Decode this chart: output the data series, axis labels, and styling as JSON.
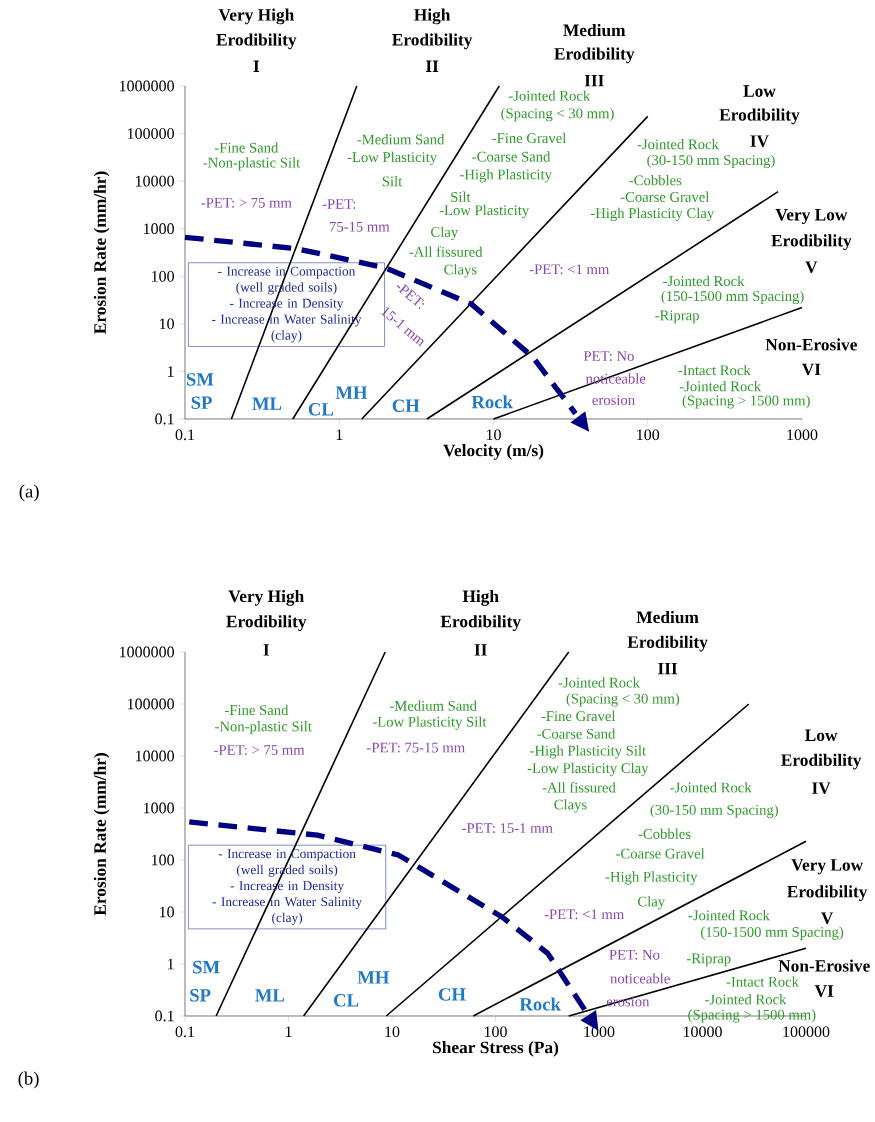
{
  "chart_data": [
    {
      "type": "line",
      "title": "(a)",
      "xlabel": "Velocity (m/s)",
      "ylabel": "Erosion Rate (mm/hr)",
      "log": "xy",
      "xlim": [
        0.1,
        1000
      ],
      "ylim": [
        0.1,
        1000000
      ],
      "xticks": [
        0.1,
        1,
        10,
        100,
        1000
      ],
      "yticks": [
        0.1,
        1,
        10,
        100,
        1000,
        10000,
        100000,
        1000000
      ],
      "series": [
        {
          "color": "#000000",
          "x": [
            0.2,
            1.3
          ],
          "values": [
            0.1,
            1000000
          ]
        },
        {
          "color": "#000000",
          "x": [
            0.5,
            10.9
          ],
          "values": [
            0.1,
            1000000
          ]
        },
        {
          "color": "#000000",
          "x": [
            1.4,
            100
          ],
          "values": [
            0.1,
            230000
          ]
        },
        {
          "color": "#000000",
          "x": [
            3.7,
            700
          ],
          "values": [
            0.1,
            6000
          ]
        },
        {
          "color": "#000000",
          "x": [
            10,
            1000
          ],
          "values": [
            0.1,
            22
          ]
        },
        {
          "color": "#000080",
          "line_style": "dashed",
          "x": [
            0.1,
            0.53,
            2.0,
            7.2,
            18,
            34
          ],
          "values": [
            660,
            380,
            150,
            26,
            2,
            0.13
          ]
        }
      ],
      "annotations": [
        "Very High",
        "Erodibility",
        "I",
        "High",
        "Erodibility",
        "II",
        "Medium",
        "Erodibility",
        "III",
        "Low",
        "Erodibility",
        "IV",
        "Very Low",
        "Erodibility",
        "V",
        "Non-Erosive",
        "VI",
        "-Fine Sand",
        "-Non-plastic Silt",
        "-Medium Sand",
        "-Low Plasticity",
        "Silt",
        "-Jointed Rock",
        "(Spacing < 30 mm)",
        "-Fine Gravel",
        "-Coarse Sand",
        "-High Plasticity",
        "Silt",
        "-Low Plasticity",
        "Clay",
        "-All fissured",
        "Clays",
        "-Jointed Rock",
        "(30-150 mm Spacing)",
        "-Cobbles",
        "-Coarse Gravel",
        "-High Plasticity Clay",
        "-Jointed Rock",
        "(150-1500 mm Spacing)",
        "-Riprap",
        "-Intact Rock",
        "-Jointed Rock",
        "(Spacing > 1500 mm)",
        "-PET: > 75 mm",
        "-PET:",
        "75-15 mm",
        "-PET: <1 mm",
        "-PET:",
        "15-1 mm",
        "PET: No",
        "noticeable",
        "erosion",
        "SM",
        "SP",
        "ML",
        "CL",
        "MH",
        "CH",
        "Rock",
        "- Increase in Compaction",
        "(well graded soils)",
        "- Increase in Density",
        "- Increase in Water Salinity",
        "(clay)"
      ]
    },
    {
      "type": "line",
      "title": "(b)",
      "xlabel": "Shear Stress (Pa)",
      "ylabel": "Erosion Rate (mm/hr)",
      "log": "xy",
      "xlim": [
        0.1,
        100000
      ],
      "ylim": [
        0.1,
        1000000
      ],
      "xticks": [
        0.1,
        1,
        10,
        100,
        1000,
        10000,
        100000
      ],
      "yticks": [
        0.1,
        1,
        10,
        100,
        1000,
        10000,
        100000,
        1000000
      ],
      "series": [
        {
          "color": "#000000",
          "x": [
            0.2,
            8.6
          ],
          "values": [
            0.1,
            1000000
          ]
        },
        {
          "color": "#000000",
          "x": [
            1.4,
            510
          ],
          "values": [
            0.1,
            1000000
          ]
        },
        {
          "color": "#000000",
          "x": [
            8.8,
            28000
          ],
          "values": [
            0.1,
            100000
          ]
        },
        {
          "color": "#000000",
          "x": [
            61,
            100000
          ],
          "values": [
            0.1,
            230
          ]
        },
        {
          "color": "#000000",
          "x": [
            510,
            100000
          ],
          "values": [
            0.1,
            2
          ]
        },
        {
          "color": "#000080",
          "line_style": "dashed",
          "x": [
            0.11,
            1.9,
            11.5,
            116,
            320,
            750
          ],
          "values": [
            540,
            300,
            125,
            8,
            1.6,
            0.12
          ]
        }
      ],
      "annotations": [
        "Very High",
        "Erodibility",
        "I",
        "High",
        "Erodibility",
        "II",
        "Medium",
        "Erodibility",
        "III",
        "Low",
        "Erodibility",
        "IV",
        "Very Low",
        "Erodibility",
        "V",
        "Non-Erosive",
        "VI",
        "-Fine Sand",
        "-Non-plastic Silt",
        "-Medium Sand",
        "-Low Plasticity Silt",
        "-Jointed Rock",
        "(Spacing < 30 mm)",
        "-Fine Gravel",
        "-Coarse Sand",
        "-High Plasticity Silt",
        "-Low Plasticity Clay",
        "-All fissured",
        "Clays",
        "-Jointed Rock",
        "(30-150 mm Spacing)",
        "-Cobbles",
        "-Coarse Gravel",
        "-High Plasticity",
        "Clay",
        "-Jointed Rock",
        "(150-1500 mm Spacing)",
        "-Riprap",
        "-Intact Rock",
        "-Jointed Rock",
        "(Spacing > 1500 mm)",
        "-PET: > 75 mm",
        "-PET: 75-15 mm",
        "-PET: 15-1 mm",
        "-PET: <1 mm",
        "PET: No",
        "noticeable",
        "erosion",
        "SM",
        "SP",
        "ML",
        "CL",
        "MH",
        "CH",
        "Rock",
        "- Increase in Compaction",
        "(well graded soils)",
        "- Increase in Density",
        "- Increase in Water Salinity",
        "(clay)"
      ]
    }
  ]
}
